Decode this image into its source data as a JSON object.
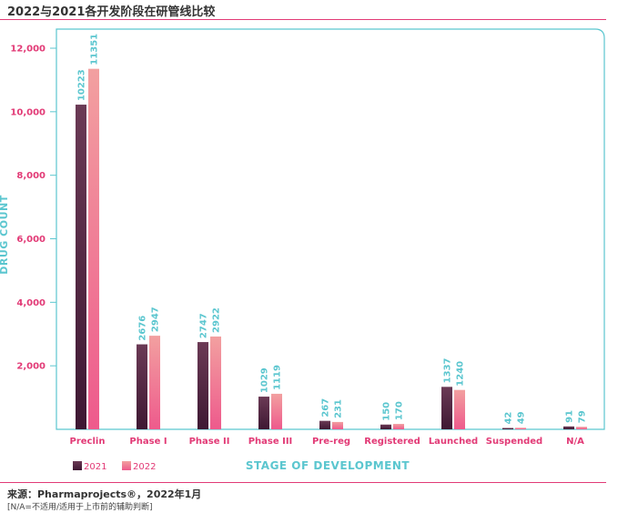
{
  "page": {
    "title": "2022与2021各开发阶段在研管线比较",
    "source": "来源：Pharmaprojects®，2022年1月",
    "note": "[N/A=不适用/适用于上市前的辅助判断]"
  },
  "colors": {
    "accent": "#e23a76",
    "teal": "#5bc6cf",
    "series_2021_top": "#6b3a55",
    "series_2021_bottom": "#3e1833",
    "series_2022_top": "#f2a0a0",
    "series_2022_bottom": "#ee5a8c"
  },
  "chart_data": {
    "type": "bar",
    "xlabel": "STAGE OF DEVELOPMENT",
    "ylabel": "DRUG COUNT",
    "ylim": [
      0,
      12000
    ],
    "yticks": [
      2000,
      4000,
      6000,
      8000,
      10000,
      12000
    ],
    "ytick_labels": [
      "2,000",
      "4,000",
      "6,000",
      "8,000",
      "10,000",
      "12,000"
    ],
    "categories": [
      "Preclin",
      "Phase I",
      "Phase II",
      "Phase III",
      "Pre-reg",
      "Registered",
      "Launched",
      "Suspended",
      "N/A"
    ],
    "series": [
      {
        "name": "2021",
        "values": [
          10223,
          2676,
          2747,
          1029,
          267,
          150,
          1337,
          42,
          91
        ]
      },
      {
        "name": "2022",
        "values": [
          11351,
          2947,
          2922,
          1119,
          231,
          170,
          1240,
          49,
          79
        ]
      }
    ],
    "legend_position": "bottom-left",
    "grid": false
  }
}
